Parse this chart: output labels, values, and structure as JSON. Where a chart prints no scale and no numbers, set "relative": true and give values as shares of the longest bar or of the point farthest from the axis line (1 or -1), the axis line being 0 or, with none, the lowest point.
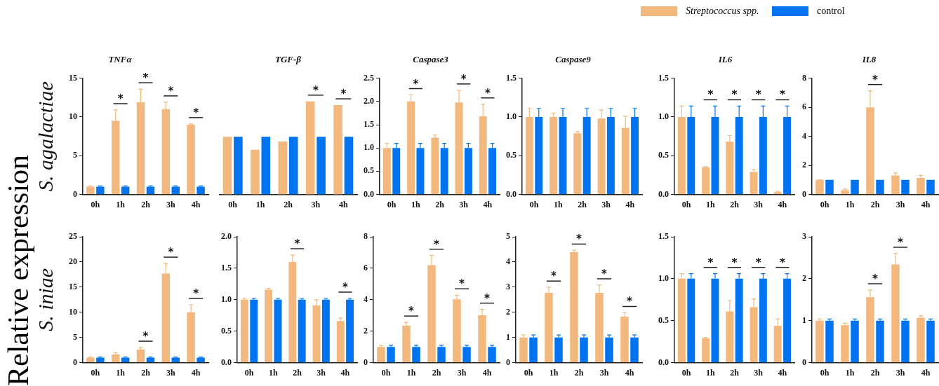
{
  "chart_data": [
    {
      "type": "bar",
      "title": "TNFα",
      "ylabel": "S. agalactiae",
      "legend": "top right",
      "categories": [
        "0h",
        "1h",
        "2h",
        "3h",
        "4h"
      ],
      "ylim": [
        0,
        15
      ],
      "yticks": [
        0,
        5,
        10,
        15
      ],
      "series": [
        {
          "name": "Streptococcus spp.",
          "color": "#f2b87e",
          "values": [
            1.0,
            9.5,
            11.9,
            11.0,
            9.0
          ],
          "errors": [
            [
              1.0,
              1.1
            ],
            [
              9.5,
              10.9
            ],
            [
              11.9,
              13.6
            ],
            [
              11.0,
              11.9
            ],
            [
              9.0,
              9.1
            ]
          ]
        },
        {
          "name": "control",
          "color": "#0073f0",
          "values": [
            1.0,
            1.0,
            1.0,
            1.0,
            1.0
          ],
          "errors": [
            [
              1.0,
              1.1
            ],
            [
              1.0,
              1.1
            ],
            [
              1.0,
              1.1
            ],
            [
              1.0,
              1.1
            ],
            [
              1.0,
              1.1
            ]
          ]
        }
      ],
      "annotations": [
        "Relative expression",
        {
          "text": "*",
          "x": "1h",
          "y": 10.9
        },
        {
          "text": "*",
          "x": "2h",
          "y": 13.6
        },
        {
          "text": "*",
          "x": "3h",
          "y": 11.9
        },
        {
          "text": "*",
          "x": "4h",
          "y": 9.1
        }
      ]
    },
    {
      "type": "bar",
      "title": "TGF-β",
      "relative": true,
      "categories": [
        "0h",
        "1h",
        "2h",
        "3h",
        "4h"
      ],
      "series": [
        {
          "color": "#f2b87e",
          "values": [
            0.62,
            0.48,
            0.57,
            1.0,
            0.96
          ]
        },
        {
          "color": "#0073f0",
          "values": [
            0.62,
            0.62,
            0.62,
            0.62,
            0.62
          ]
        }
      ],
      "annotations": [
        {
          "text": "*",
          "x": "3h",
          "y": 1.0
        },
        {
          "text": "*",
          "x": "4h",
          "y": 0.96
        }
      ]
    },
    {
      "type": "bar",
      "title": "Caspase3",
      "categories": [
        "0h",
        "1h",
        "2h",
        "3h",
        "4h"
      ],
      "ylim": [
        0,
        2.5
      ],
      "yticks": [
        {
          "value": 0,
          "label": "0.0"
        },
        {
          "value": 0.5,
          "label": "0.5"
        },
        {
          "value": 1,
          "label": "1.0"
        },
        {
          "value": 1.5,
          "label": "1.5"
        },
        {
          "value": 2,
          "label": "2.0"
        },
        {
          "value": 2.5,
          "label": "2.5"
        }
      ],
      "series": [
        {
          "color": "#f2b87e",
          "values": [
            1.0,
            2.0,
            1.22,
            1.98,
            1.68
          ],
          "errors": [
            [
              1.0,
              1.1
            ],
            [
              2.0,
              2.14
            ],
            [
              1.22,
              1.28
            ],
            [
              1.98,
              2.24
            ],
            [
              1.68,
              1.94
            ]
          ]
        },
        {
          "color": "#0073f0",
          "values": [
            1.0,
            1.0,
            1.0,
            1.0,
            1.0
          ],
          "errors": [
            [
              1.0,
              1.1
            ],
            [
              1.0,
              1.1
            ],
            [
              1.0,
              1.1
            ],
            [
              1.0,
              1.1
            ],
            [
              1.0,
              1.1
            ]
          ]
        }
      ],
      "annotations": [
        {
          "text": "*",
          "x": "1h",
          "y": 2.14
        },
        {
          "text": "*",
          "x": "3h",
          "y": 2.24
        },
        {
          "text": "*",
          "x": "4h",
          "y": 1.94
        }
      ]
    },
    {
      "type": "bar",
      "title": "Caspase9",
      "categories": [
        "0h",
        "1h",
        "2h",
        "3h",
        "4h"
      ],
      "ylim": [
        0,
        1.5
      ],
      "yticks": [
        {
          "value": 0,
          "label": "0.0"
        },
        {
          "value": 0.5,
          "label": "0.5"
        },
        {
          "value": 1,
          "label": "1.0"
        },
        {
          "value": 1.5,
          "label": "1.5"
        }
      ],
      "series": [
        {
          "color": "#f2b87e",
          "values": [
            1.0,
            1.0,
            0.79,
            0.98,
            0.86
          ],
          "errors": [
            [
              1.0,
              1.11
            ],
            [
              1.0,
              1.05
            ],
            [
              0.79,
              0.81
            ],
            [
              0.98,
              1.09
            ],
            [
              0.86,
              1.01
            ]
          ]
        },
        {
          "color": "#0073f0",
          "values": [
            1.0,
            1.0,
            1.0,
            1.0,
            1.0
          ],
          "errors": [
            [
              1.0,
              1.11
            ],
            [
              1.0,
              1.11
            ],
            [
              1.0,
              1.11
            ],
            [
              1.0,
              1.11
            ],
            [
              1.0,
              1.11
            ]
          ]
        }
      ]
    },
    {
      "type": "bar",
      "title": "IL6",
      "categories": [
        "0h",
        "1h",
        "2h",
        "3h",
        "4h"
      ],
      "ylim": [
        0,
        1.5
      ],
      "yticks": [
        {
          "value": 0,
          "label": "0.0"
        },
        {
          "value": 0.5,
          "label": "0.5"
        },
        {
          "value": 1,
          "label": "1.0"
        },
        {
          "value": 1.5,
          "label": "1.5"
        }
      ],
      "series": [
        {
          "color": "#f2b87e",
          "values": [
            1.0,
            0.35,
            0.68,
            0.29,
            0.03
          ],
          "errors": [
            [
              1.0,
              1.14
            ],
            [
              0.35,
              0.36
            ],
            [
              0.68,
              0.76
            ],
            [
              0.29,
              0.32
            ],
            [
              0.03,
              0.04
            ]
          ]
        },
        {
          "color": "#0073f0",
          "values": [
            1.0,
            1.0,
            1.0,
            1.0,
            1.0
          ],
          "errors": [
            [
              1.0,
              1.14
            ],
            [
              1.0,
              1.14
            ],
            [
              1.0,
              1.14
            ],
            [
              1.0,
              1.14
            ],
            [
              1.0,
              1.14
            ]
          ]
        }
      ],
      "annotations": [
        {
          "text": "*",
          "x": "1h",
          "y": 1.14
        },
        {
          "text": "*",
          "x": "2h",
          "y": 1.14
        },
        {
          "text": "*",
          "x": "3h",
          "y": 1.14
        },
        {
          "text": "*",
          "x": "4h",
          "y": 1.14
        }
      ]
    },
    {
      "type": "bar",
      "title": "IL8",
      "categories": [
        "0h",
        "1h",
        "2h",
        "3h",
        "4h"
      ],
      "ylim": [
        0,
        8
      ],
      "yticks": [
        0,
        2,
        4,
        6,
        8
      ],
      "series": [
        {
          "color": "#f2b87e",
          "values": [
            1.0,
            0.29,
            5.99,
            1.31,
            1.14
          ],
          "errors": [
            [
              1.0,
              1.0
            ],
            [
              0.29,
              0.37
            ],
            [
              5.99,
              7.13
            ],
            [
              1.31,
              1.48
            ],
            [
              1.14,
              1.31
            ]
          ]
        },
        {
          "color": "#0073f0",
          "values": [
            1.0,
            1.0,
            1.0,
            1.0,
            1.0
          ]
        }
      ],
      "annotations": [
        {
          "text": "*",
          "x": "2h",
          "y": 7.13
        }
      ]
    },
    {
      "type": "bar",
      "ylabel": "S. iniae",
      "categories": [
        "0h",
        "1h",
        "2h",
        "3h",
        "4h"
      ],
      "ylim": [
        0,
        25
      ],
      "yticks": [
        0,
        5,
        10,
        15,
        20,
        25
      ],
      "series": [
        {
          "color": "#f2b87e",
          "values": [
            1.0,
            1.6,
            2.6,
            17.7,
            10.0
          ],
          "errors": [
            [
              1.0,
              1.1
            ],
            [
              1.6,
              2.0
            ],
            [
              2.6,
              3.0
            ],
            [
              17.7,
              19.7
            ],
            [
              10.0,
              11.5
            ]
          ]
        },
        {
          "color": "#0073f0",
          "values": [
            1.0,
            1.0,
            1.0,
            1.0,
            1.0
          ],
          "errors": [
            [
              1.0,
              1.1
            ],
            [
              1.0,
              1.1
            ],
            [
              1.0,
              1.1
            ],
            [
              1.0,
              1.1
            ],
            [
              1.0,
              1.1
            ]
          ]
        }
      ],
      "annotations": [
        {
          "text": "*",
          "x": "2h",
          "y": 3.0
        },
        {
          "text": "*",
          "x": "3h",
          "y": 19.7
        },
        {
          "text": "*",
          "x": "4h",
          "y": 11.5
        }
      ]
    },
    {
      "type": "bar",
      "categories": [
        "0h",
        "1h",
        "2h",
        "3h",
        "4h"
      ],
      "ylim": [
        0,
        2
      ],
      "yticks": [
        {
          "value": 0,
          "label": "0.0"
        },
        {
          "value": 0.5,
          "label": "0.5"
        },
        {
          "value": 1,
          "label": "1.0"
        },
        {
          "value": 1.5,
          "label": "1.5"
        },
        {
          "value": 2,
          "label": "2.0"
        }
      ],
      "series": [
        {
          "color": "#f2b87e",
          "values": [
            1.0,
            1.16,
            1.6,
            0.91,
            0.66
          ],
          "errors": [
            [
              1.0,
              1.02
            ],
            [
              1.16,
              1.18
            ],
            [
              1.6,
              1.71
            ],
            [
              0.91,
              1.0
            ],
            [
              0.66,
              0.71
            ]
          ]
        },
        {
          "color": "#0073f0",
          "values": [
            1.0,
            1.0,
            1.0,
            1.0,
            1.0
          ],
          "errors": [
            [
              1.0,
              1.02
            ],
            [
              1.0,
              1.02
            ],
            [
              1.0,
              1.02
            ],
            [
              1.0,
              1.02
            ],
            [
              1.0,
              1.02
            ]
          ]
        }
      ],
      "annotations": [
        {
          "text": "*",
          "x": "2h",
          "y": 1.71
        },
        {
          "text": "*",
          "x": "4h",
          "y": 1.02
        }
      ]
    },
    {
      "type": "bar",
      "categories": [
        "0h",
        "1h",
        "2h",
        "3h",
        "4h"
      ],
      "ylim": [
        0,
        8
      ],
      "yticks": [
        0,
        2,
        4,
        6,
        8
      ],
      "series": [
        {
          "color": "#f2b87e",
          "values": [
            1.0,
            2.35,
            6.2,
            4.02,
            3.01
          ],
          "errors": [
            [
              1.0,
              1.1
            ],
            [
              2.35,
              2.56
            ],
            [
              6.2,
              6.81
            ],
            [
              4.02,
              4.29
            ],
            [
              3.01,
              3.38
            ]
          ]
        },
        {
          "color": "#0073f0",
          "values": [
            1.0,
            1.0,
            1.0,
            1.0,
            1.0
          ],
          "errors": [
            [
              1.0,
              1.1
            ],
            [
              1.0,
              1.1
            ],
            [
              1.0,
              1.1
            ],
            [
              1.0,
              1.1
            ],
            [
              1.0,
              1.1
            ]
          ]
        }
      ],
      "annotations": [
        {
          "text": "*",
          "x": "1h",
          "y": 2.56
        },
        {
          "text": "*",
          "x": "2h",
          "y": 6.81
        },
        {
          "text": "*",
          "x": "3h",
          "y": 4.29
        },
        {
          "text": "*",
          "x": "4h",
          "y": 3.38
        }
      ]
    },
    {
      "type": "bar",
      "categories": [
        "0h",
        "1h",
        "2h",
        "3h",
        "4h"
      ],
      "ylim": [
        0,
        5
      ],
      "yticks": [
        0,
        1,
        2,
        3,
        4,
        5
      ],
      "series": [
        {
          "color": "#f2b87e",
          "values": [
            1.0,
            2.77,
            4.39,
            2.77,
            1.83
          ],
          "errors": [
            [
              1.0,
              1.1
            ],
            [
              2.77,
              2.99
            ],
            [
              4.39,
              4.46
            ],
            [
              2.77,
              3.08
            ],
            [
              1.83,
              1.98
            ]
          ]
        },
        {
          "color": "#0073f0",
          "values": [
            1.0,
            1.0,
            1.0,
            1.0,
            1.0
          ],
          "errors": [
            [
              1.0,
              1.1
            ],
            [
              1.0,
              1.1
            ],
            [
              1.0,
              1.1
            ],
            [
              1.0,
              1.1
            ],
            [
              1.0,
              1.1
            ]
          ]
        }
      ],
      "annotations": [
        {
          "text": "*",
          "x": "1h",
          "y": 2.99
        },
        {
          "text": "*",
          "x": "2h",
          "y": 4.46
        },
        {
          "text": "*",
          "x": "3h",
          "y": 3.08
        },
        {
          "text": "*",
          "x": "4h",
          "y": 1.98
        }
      ]
    },
    {
      "type": "bar",
      "categories": [
        "0h",
        "1h",
        "2h",
        "3h",
        "4h"
      ],
      "ylim": [
        0,
        1.5
      ],
      "yticks": [
        {
          "value": 0,
          "label": "0.0"
        },
        {
          "value": 0.5,
          "label": "0.5"
        },
        {
          "value": 1,
          "label": "1.0"
        },
        {
          "value": 1.5,
          "label": "1.5"
        }
      ],
      "series": [
        {
          "color": "#f2b87e",
          "values": [
            1.0,
            0.29,
            0.61,
            0.66,
            0.44
          ],
          "errors": [
            [
              1.0,
              1.06
            ],
            [
              0.29,
              0.3
            ],
            [
              0.61,
              0.74
            ],
            [
              0.66,
              0.76
            ],
            [
              0.44,
              0.52
            ]
          ]
        },
        {
          "color": "#0073f0",
          "values": [
            1.0,
            1.0,
            1.0,
            1.0,
            1.0
          ],
          "errors": [
            [
              1.0,
              1.06
            ],
            [
              1.0,
              1.06
            ],
            [
              1.0,
              1.06
            ],
            [
              1.0,
              1.06
            ],
            [
              1.0,
              1.06
            ]
          ]
        }
      ],
      "annotations": [
        {
          "text": "*",
          "x": "1h",
          "y": 1.06
        },
        {
          "text": "*",
          "x": "2h",
          "y": 1.06
        },
        {
          "text": "*",
          "x": "3h",
          "y": 1.06
        },
        {
          "text": "*",
          "x": "4h",
          "y": 1.06
        }
      ]
    },
    {
      "type": "bar",
      "categories": [
        "0h",
        "1h",
        "2h",
        "3h",
        "4h"
      ],
      "ylim": [
        0,
        3
      ],
      "yticks": [
        0,
        1,
        2,
        3
      ],
      "series": [
        {
          "color": "#f2b87e",
          "values": [
            1.0,
            0.89,
            1.56,
            2.34,
            1.07
          ],
          "errors": [
            [
              1.0,
              1.04
            ],
            [
              0.89,
              0.94
            ],
            [
              1.56,
              1.73
            ],
            [
              2.34,
              2.6
            ],
            [
              1.07,
              1.12
            ]
          ]
        },
        {
          "color": "#0073f0",
          "values": [
            1.0,
            1.0,
            1.0,
            1.0,
            1.0
          ],
          "errors": [
            [
              1.0,
              1.04
            ],
            [
              1.0,
              1.04
            ],
            [
              1.0,
              1.04
            ],
            [
              1.0,
              1.04
            ],
            [
              1.0,
              1.04
            ]
          ]
        }
      ],
      "annotations": [
        {
          "text": "*",
          "x": "2h",
          "y": 1.73
        },
        {
          "text": "*",
          "x": "3h",
          "y": 2.6
        }
      ]
    }
  ]
}
